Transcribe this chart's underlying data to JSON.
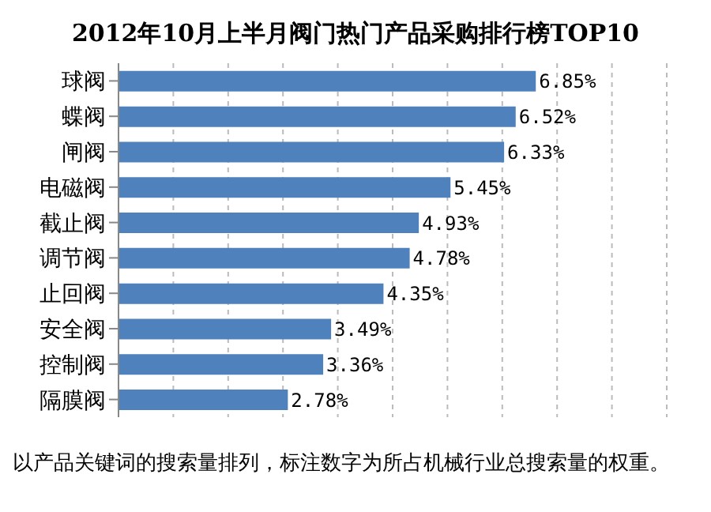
{
  "chart_data": {
    "type": "bar",
    "orientation": "horizontal",
    "title": "2012年10月上半月阀门热门产品采购排行榜TOP10",
    "categories": [
      "球阀",
      "蝶阀",
      "闸阀",
      "电磁阀",
      "截止阀",
      "调节阀",
      "止回阀",
      "安全阀",
      "控制阀",
      "隔膜阀"
    ],
    "values": [
      6.85,
      6.52,
      6.33,
      5.45,
      4.93,
      4.78,
      4.35,
      3.49,
      3.36,
      2.78
    ],
    "value_labels": [
      "6.85%",
      "6.52%",
      "6.33%",
      "5.45%",
      "4.93%",
      "4.78%",
      "4.35%",
      "3.49%",
      "3.36%",
      "2.78%"
    ],
    "color": "#4f81bd",
    "xlim": [
      0,
      9
    ],
    "grid": "x",
    "tick_labels": "y",
    "annotations": [
      "以产品关键词的搜索量排列，标注数字为所占机械行业总搜索量的权重。"
    ]
  }
}
